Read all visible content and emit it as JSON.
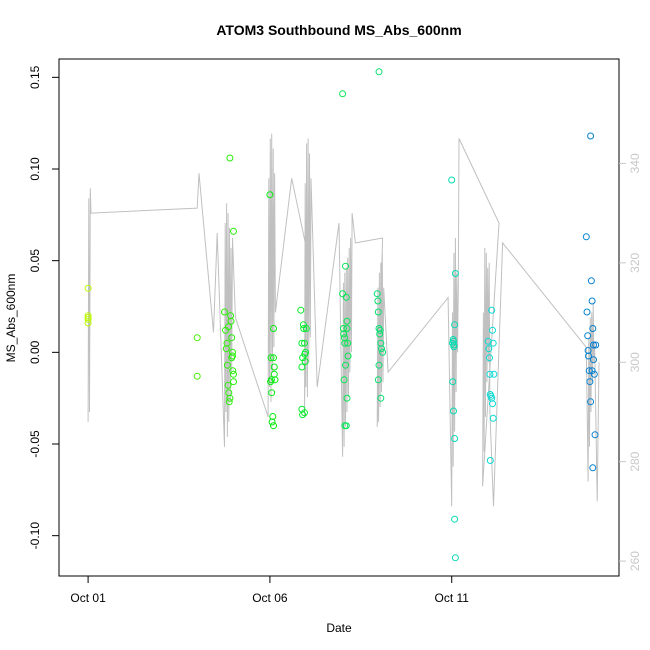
{
  "chart_data": {
    "type": "scatter",
    "title": "ATOM3 Southbound MS_Abs_600nm",
    "xlabel": "Date",
    "ylabel": "MS_Abs_600nm",
    "x_tick_labels": [
      "Oct 01",
      "Oct 06",
      "Oct 11"
    ],
    "x_ticks_day": [
      1,
      6,
      11
    ],
    "xlim_day": [
      0.2,
      15.6
    ],
    "ylim": [
      -0.122,
      0.16
    ],
    "y_ticks": [
      -0.1,
      -0.05,
      0.0,
      0.05,
      0.1,
      0.15
    ],
    "y_tick_labels": [
      "-0.10",
      "-0.05",
      "0.00",
      "0.05",
      "0.10",
      "0.15"
    ],
    "y2lim": [
      257,
      361
    ],
    "y2_ticks": [
      260,
      280,
      300,
      320,
      340
    ],
    "y2_tick_labels": [
      "260",
      "280",
      "300",
      "320",
      "340"
    ],
    "line_color": "#c0c0c0",
    "secondary_series": [
      [
        1.0,
        288
      ],
      [
        1.02,
        333
      ],
      [
        1.04,
        290
      ],
      [
        1.06,
        335
      ],
      [
        1.08,
        330
      ],
      [
        4.0,
        331
      ],
      [
        4.05,
        338
      ],
      [
        4.45,
        306
      ],
      [
        4.55,
        326
      ],
      [
        4.75,
        283
      ],
      [
        4.77,
        328
      ],
      [
        4.79,
        290
      ],
      [
        4.81,
        332
      ],
      [
        4.83,
        285
      ],
      [
        4.85,
        330
      ],
      [
        4.87,
        288
      ],
      [
        4.89,
        327
      ],
      [
        4.91,
        292
      ],
      [
        4.93,
        323
      ],
      [
        4.95,
        298
      ],
      [
        4.97,
        325
      ],
      [
        5.05,
        309
      ],
      [
        5.95,
        289
      ],
      [
        5.97,
        337
      ],
      [
        5.99,
        295
      ],
      [
        6.01,
        345
      ],
      [
        6.03,
        292
      ],
      [
        6.05,
        346
      ],
      [
        6.07,
        298
      ],
      [
        6.09,
        343
      ],
      [
        6.11,
        303
      ],
      [
        6.13,
        338
      ],
      [
        6.15,
        310
      ],
      [
        6.6,
        337
      ],
      [
        7.0,
        323
      ],
      [
        6.95,
        289
      ],
      [
        6.97,
        336
      ],
      [
        6.99,
        295
      ],
      [
        7.01,
        344
      ],
      [
        7.03,
        293
      ],
      [
        7.05,
        345
      ],
      [
        7.07,
        300
      ],
      [
        7.09,
        342
      ],
      [
        7.11,
        305
      ],
      [
        7.13,
        337
      ],
      [
        7.3,
        295
      ],
      [
        7.9,
        328
      ],
      [
        8.0,
        281
      ],
      [
        8.02,
        316
      ],
      [
        8.04,
        283
      ],
      [
        8.06,
        318
      ],
      [
        8.08,
        287
      ],
      [
        8.1,
        319
      ],
      [
        8.12,
        290
      ],
      [
        8.14,
        321
      ],
      [
        8.16,
        293
      ],
      [
        8.18,
        323
      ],
      [
        8.2,
        298
      ],
      [
        8.22,
        325
      ],
      [
        8.24,
        302
      ],
      [
        8.26,
        330
      ],
      [
        8.35,
        324
      ],
      [
        9.1,
        325
      ],
      [
        8.95,
        287
      ],
      [
        8.97,
        315
      ],
      [
        8.99,
        288
      ],
      [
        9.01,
        318
      ],
      [
        9.03,
        291
      ],
      [
        9.05,
        320
      ],
      [
        9.07,
        294
      ],
      [
        9.09,
        322
      ],
      [
        9.11,
        296
      ],
      [
        9.13,
        315
      ],
      [
        9.25,
        298
      ],
      [
        10.9,
        313
      ],
      [
        11.0,
        271
      ],
      [
        11.02,
        310
      ],
      [
        11.04,
        279
      ],
      [
        11.06,
        322
      ],
      [
        11.08,
        286
      ],
      [
        11.1,
        325
      ],
      [
        11.12,
        294
      ],
      [
        11.14,
        318
      ],
      [
        11.16,
        302
      ],
      [
        11.18,
        315
      ],
      [
        11.2,
        345
      ],
      [
        12.3,
        328
      ],
      [
        11.85,
        275
      ],
      [
        11.87,
        310
      ],
      [
        11.89,
        282
      ],
      [
        11.91,
        323
      ],
      [
        11.93,
        289
      ],
      [
        11.95,
        322
      ],
      [
        11.97,
        296
      ],
      [
        11.99,
        319
      ],
      [
        12.01,
        300
      ],
      [
        12.03,
        320
      ],
      [
        12.05,
        290
      ],
      [
        12.15,
        271
      ],
      [
        12.4,
        324
      ],
      [
        14.7,
        303
      ],
      [
        14.75,
        276
      ],
      [
        14.77,
        305
      ],
      [
        14.79,
        283
      ],
      [
        14.81,
        309
      ],
      [
        14.83,
        290
      ],
      [
        14.85,
        310
      ],
      [
        14.87,
        296
      ],
      [
        14.89,
        312
      ],
      [
        14.91,
        300
      ],
      [
        14.93,
        304
      ],
      [
        15.0,
        272
      ],
      [
        15.05,
        300
      ]
    ],
    "points": [
      [
        1.0,
        0.035
      ],
      [
        1.0,
        0.02
      ],
      [
        1.0,
        0.018
      ],
      [
        1.0,
        0.016
      ],
      [
        1.0,
        0.019
      ],
      [
        4.0,
        0.008
      ],
      [
        4.0,
        -0.013
      ],
      [
        4.75,
        0.022
      ],
      [
        4.78,
        0.012
      ],
      [
        4.8,
        0.002
      ],
      [
        4.82,
        0.005
      ],
      [
        4.83,
        -0.007
      ],
      [
        4.85,
        -0.018
      ],
      [
        4.87,
        -0.022
      ],
      [
        4.88,
        -0.027
      ],
      [
        4.9,
        -0.025
      ],
      [
        4.9,
        0.106
      ],
      [
        4.92,
        0.02
      ],
      [
        4.93,
        0.017
      ],
      [
        4.95,
        0.008
      ],
      [
        4.97,
        0.0
      ],
      [
        4.97,
        -0.002
      ],
      [
        4.98,
        -0.01
      ],
      [
        5.0,
        -0.012
      ],
      [
        5.0,
        -0.016
      ],
      [
        5.0,
        0.066
      ],
      [
        4.86,
        0.014
      ],
      [
        4.95,
        -0.003
      ],
      [
        6.0,
        0.086
      ],
      [
        6.02,
        -0.016
      ],
      [
        6.04,
        -0.015
      ],
      [
        6.05,
        -0.022
      ],
      [
        6.06,
        -0.038
      ],
      [
        6.08,
        -0.035
      ],
      [
        6.1,
        -0.04
      ],
      [
        6.1,
        0.013
      ],
      [
        6.1,
        -0.003
      ],
      [
        6.12,
        -0.008
      ],
      [
        6.12,
        -0.012
      ],
      [
        6.14,
        -0.015
      ],
      [
        6.03,
        -0.003
      ],
      [
        6.85,
        0.023
      ],
      [
        6.88,
        0.005
      ],
      [
        6.9,
        -0.003
      ],
      [
        6.92,
        0.015
      ],
      [
        6.93,
        0.013
      ],
      [
        6.95,
        0.005
      ],
      [
        6.96,
        -0.001
      ],
      [
        6.98,
        0.0
      ],
      [
        7.0,
        0.013
      ],
      [
        6.88,
        -0.031
      ],
      [
        6.9,
        -0.034
      ],
      [
        6.95,
        -0.033
      ],
      [
        6.88,
        -0.008
      ],
      [
        6.97,
        -0.005
      ],
      [
        8.0,
        0.141
      ],
      [
        8.0,
        0.032
      ],
      [
        8.02,
        0.013
      ],
      [
        8.03,
        0.01
      ],
      [
        8.05,
        0.008
      ],
      [
        8.06,
        0.005
      ],
      [
        8.08,
        0.047
      ],
      [
        8.1,
        0.03
      ],
      [
        8.12,
        0.017
      ],
      [
        8.12,
        0.013
      ],
      [
        8.14,
        0.005
      ],
      [
        8.15,
        -0.002
      ],
      [
        8.04,
        -0.015
      ],
      [
        8.06,
        -0.04
      ],
      [
        8.1,
        -0.04
      ],
      [
        8.12,
        -0.025
      ],
      [
        8.08,
        -0.007
      ],
      [
        9.0,
        0.153
      ],
      [
        8.95,
        0.032
      ],
      [
        8.97,
        0.028
      ],
      [
        8.98,
        0.022
      ],
      [
        9.0,
        0.013
      ],
      [
        9.02,
        0.01
      ],
      [
        9.05,
        0.005
      ],
      [
        9.07,
        0.002
      ],
      [
        9.1,
        0.0
      ],
      [
        9.0,
        -0.007
      ],
      [
        8.98,
        -0.015
      ],
      [
        9.05,
        -0.025
      ],
      [
        9.03,
        0.012
      ],
      [
        11.0,
        0.094
      ],
      [
        11.02,
        0.005
      ],
      [
        11.04,
        0.007
      ],
      [
        11.05,
        0.006
      ],
      [
        11.06,
        0.003
      ],
      [
        11.08,
        0.015
      ],
      [
        11.03,
        -0.016
      ],
      [
        11.05,
        -0.032
      ],
      [
        11.08,
        -0.047
      ],
      [
        11.08,
        -0.091
      ],
      [
        11.1,
        -0.112
      ],
      [
        11.1,
        0.043
      ],
      [
        11.06,
        0.004
      ],
      [
        12.0,
        0.006
      ],
      [
        12.02,
        0.002
      ],
      [
        12.04,
        -0.003
      ],
      [
        12.05,
        -0.012
      ],
      [
        12.06,
        -0.023
      ],
      [
        12.08,
        -0.024
      ],
      [
        12.1,
        -0.025
      ],
      [
        12.12,
        -0.028
      ],
      [
        12.14,
        -0.036
      ],
      [
        12.1,
        0.023
      ],
      [
        12.12,
        0.012
      ],
      [
        12.14,
        0.005
      ],
      [
        12.06,
        -0.059
      ],
      [
        12.16,
        -0.012
      ],
      [
        14.7,
        0.063
      ],
      [
        14.72,
        0.022
      ],
      [
        14.74,
        0.009
      ],
      [
        14.75,
        0.001
      ],
      [
        14.76,
        -0.002
      ],
      [
        14.78,
        -0.01
      ],
      [
        14.8,
        -0.016
      ],
      [
        14.82,
        -0.027
      ],
      [
        14.82,
        0.118
      ],
      [
        14.84,
        0.039
      ],
      [
        14.86,
        0.028
      ],
      [
        14.88,
        0.013
      ],
      [
        14.9,
        0.004
      ],
      [
        14.9,
        -0.004
      ],
      [
        14.92,
        -0.012
      ],
      [
        14.94,
        -0.045
      ],
      [
        14.88,
        -0.063
      ],
      [
        14.96,
        0.004
      ],
      [
        14.86,
        -0.01
      ]
    ]
  }
}
